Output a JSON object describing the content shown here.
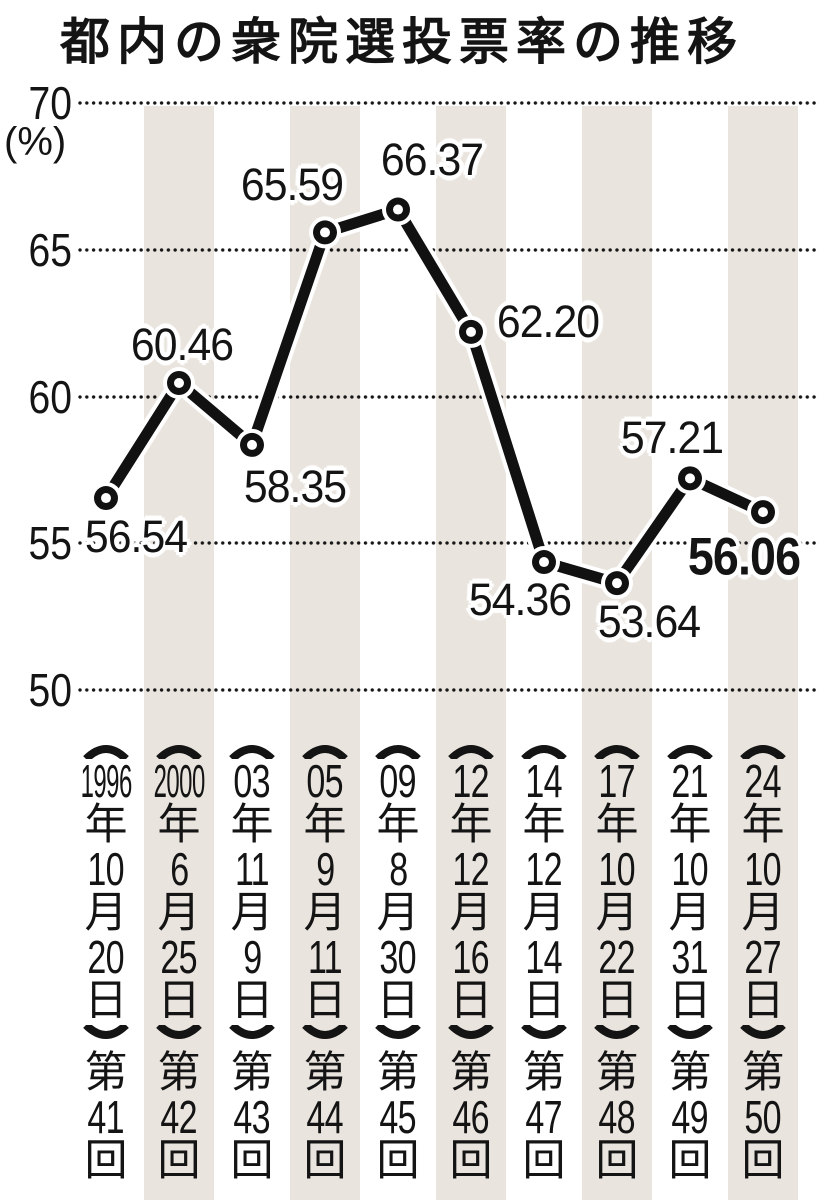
{
  "title": "都内の衆院選投票率の推移",
  "chart_data": {
    "type": "line",
    "title": "都内の衆院選投票率の推移",
    "xlabel": "",
    "ylabel": "(%)",
    "ylim": [
      50,
      70
    ],
    "y_ticks": [
      70,
      65,
      60,
      55,
      50
    ],
    "grid": "horizontal-dotted",
    "legend": "none",
    "values": [
      56.54,
      60.46,
      58.35,
      65.59,
      66.37,
      62.2,
      54.36,
      53.64,
      57.21,
      56.06
    ],
    "value_labels": [
      "56.54",
      "60.46",
      "58.35",
      "65.59",
      "66.37",
      "62.20",
      "54.36",
      "53.64",
      "57.21",
      "56.06"
    ],
    "emphasized_value_index": 9,
    "categories": [
      {
        "year": "1996",
        "month": "10",
        "day": "20",
        "number": "41",
        "full": "〔1996年10月20日〕第41回"
      },
      {
        "year": "2000",
        "month": "6",
        "day": "25",
        "number": "42",
        "full": "〔2000年6月25日〕第42回"
      },
      {
        "year": "03",
        "month": "11",
        "day": "9",
        "number": "43",
        "full": "〔03年11月9日〕第43回"
      },
      {
        "year": "05",
        "month": "9",
        "day": "11",
        "number": "44",
        "full": "〔05年9月11日〕第44回"
      },
      {
        "year": "09",
        "month": "8",
        "day": "30",
        "number": "45",
        "full": "〔09年8月30日〕第45回"
      },
      {
        "year": "12",
        "month": "12",
        "day": "16",
        "number": "46",
        "full": "〔12年12月16日〕第46回"
      },
      {
        "year": "14",
        "month": "12",
        "day": "14",
        "number": "47",
        "full": "〔14年12月14日〕第47回"
      },
      {
        "year": "17",
        "month": "10",
        "day": "22",
        "number": "48",
        "full": "〔17年10月22日〕第48回"
      },
      {
        "year": "21",
        "month": "10",
        "day": "31",
        "number": "49",
        "full": "〔21年10月31日〕第49回"
      },
      {
        "year": "24",
        "month": "10",
        "day": "27",
        "number": "50",
        "full": "〔24年10月27日〕第50回"
      }
    ],
    "kanji": {
      "year": "年",
      "month": "月",
      "day": "日",
      "ordinal_prefix": "第",
      "ordinal_suffix": "回"
    }
  },
  "colors": {
    "background": "#ffffff",
    "stripe": "#eae4de",
    "ink": "#141414",
    "line": "#111111",
    "halo": "#ffffff"
  }
}
